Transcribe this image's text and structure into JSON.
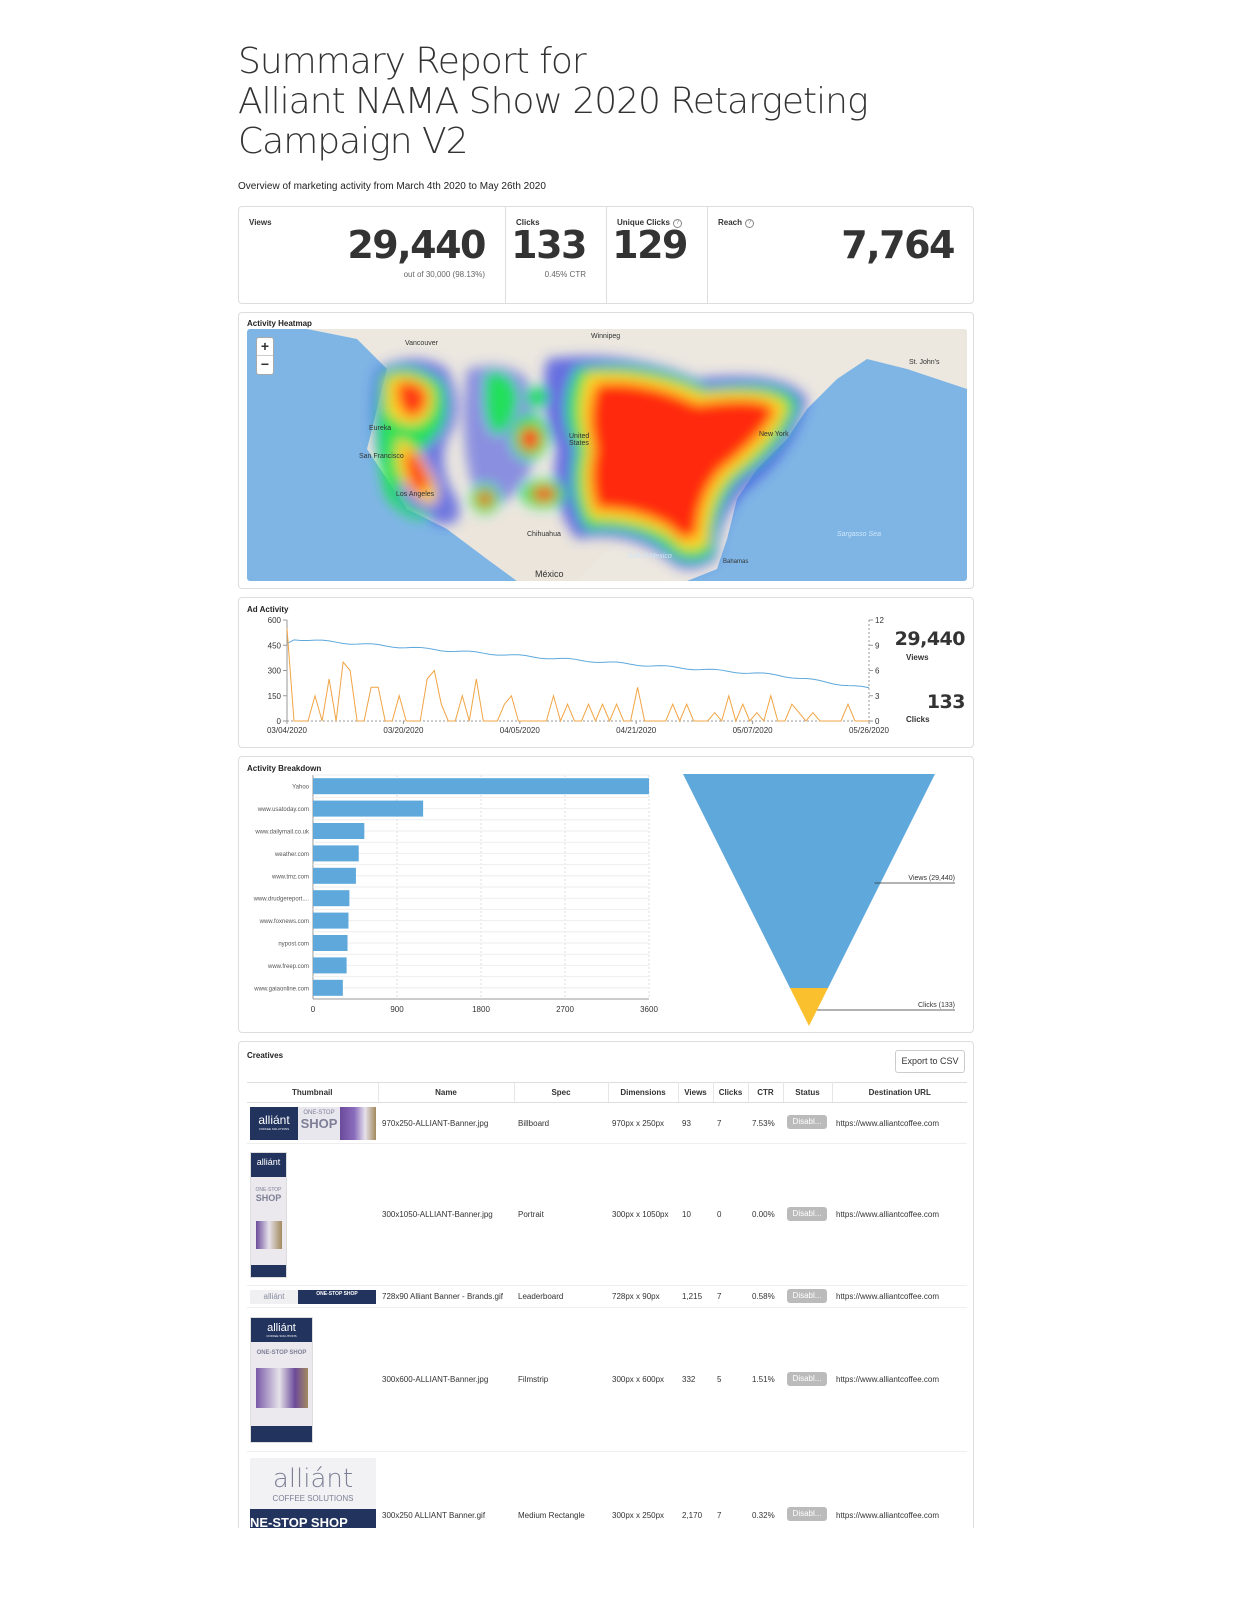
{
  "page": {
    "title_line1": "Summary Report for",
    "title_line2": "Alliant NAMA Show 2020 Retargeting",
    "title_line3": "Campaign V2",
    "subtitle": "Overview of marketing activity from March 4th 2020 to May 26th 2020"
  },
  "stats": {
    "views_label": "Views",
    "views_value": "29,440",
    "views_sub": "out of 30,000 (98.13%)",
    "clicks_label": "Clicks",
    "clicks_value": "133",
    "clicks_sub": "0.45% CTR",
    "unique_label": "Unique Clicks",
    "unique_value": "129",
    "reach_label": "Reach",
    "reach_value": "7,764",
    "help_glyph": "?"
  },
  "heatmap": {
    "title": "Activity Heatmap",
    "zoom_in": "+",
    "zoom_out": "−",
    "labels": [
      "Vancouver",
      "Winnipeg",
      "Eureka",
      "San Francisco",
      "Los Angeles",
      "Chihuahua",
      "México",
      "Gulf of Mexico",
      "Bahamas",
      "New York",
      "St. John's",
      "Sargasso Sea",
      "United States"
    ]
  },
  "ad_activity": {
    "title": "Ad Activity",
    "views_total": "29,440",
    "views_label": "Views",
    "clicks_total": "133",
    "clicks_label": "Clicks",
    "left_ticks": [
      "600",
      "450",
      "300",
      "150",
      "0"
    ],
    "right_ticks": [
      "12",
      "9",
      "6",
      "3",
      "0"
    ],
    "x_ticks": [
      "03/04/2020",
      "03/20/2020",
      "04/05/2020",
      "04/21/2020",
      "05/07/2020",
      "05/26/2020"
    ],
    "colors": {
      "views": "#5ea8dc",
      "clicks": "#f0a444"
    }
  },
  "breakdown": {
    "title": "Activity Breakdown",
    "sites": [
      "Yahoo",
      "www.usatoday.com",
      "www.dailymail.co.uk",
      "weather.com",
      "www.tmz.com",
      "www.drudgereport....",
      "www.foxnews.com",
      "nypost.com",
      "www.freep.com",
      "www.gaiaonline.com"
    ],
    "values": [
      3600,
      1180,
      550,
      490,
      460,
      390,
      380,
      370,
      360,
      320
    ],
    "x_ticks": [
      "0",
      "900",
      "1800",
      "2700",
      "3600"
    ],
    "xmax": 3600,
    "funnel_views_label": "Views (29,440)",
    "funnel_clicks_label": "Clicks (133)",
    "funnel_views": 29440,
    "funnel_clicks": 133,
    "colors": {
      "bar": "#5ea8dc",
      "views": "#5ea8dc",
      "clicks": "#fbc02d"
    }
  },
  "creatives": {
    "title": "Creatives",
    "export_label": "Export to CSV",
    "columns": [
      "Thumbnail",
      "Name",
      "Spec",
      "Dimensions",
      "Views",
      "Clicks",
      "CTR",
      "Status",
      "Destination URL"
    ],
    "rows": [
      {
        "name": "970x250-ALLIANT-Banner.jpg",
        "spec": "Billboard",
        "dims": "970px x 250px",
        "views": "93",
        "clicks": "7",
        "ctr": "7.53%",
        "status": "Disabl...",
        "url": "https://www.alliantcoffee.com"
      },
      {
        "name": "300x1050-ALLIANT-Banner.jpg",
        "spec": "Portrait",
        "dims": "300px x 1050px",
        "views": "10",
        "clicks": "0",
        "ctr": "0.00%",
        "status": "Disabl...",
        "url": "https://www.alliantcoffee.com"
      },
      {
        "name": "728x90 Alliant Banner - Brands.gif",
        "spec": "Leaderboard",
        "dims": "728px x 90px",
        "views": "1,215",
        "clicks": "7",
        "ctr": "0.58%",
        "status": "Disabl...",
        "url": "https://www.alliantcoffee.com"
      },
      {
        "name": "300x600-ALLIANT-Banner.jpg",
        "spec": "Filmstrip",
        "dims": "300px x 600px",
        "views": "332",
        "clicks": "5",
        "ctr": "1.51%",
        "status": "Disabl...",
        "url": "https://www.alliantcoffee.com"
      },
      {
        "name": "300x250 ALLIANT Banner.gif",
        "spec": "Medium Rectangle",
        "dims": "300px x 250px",
        "views": "2,170",
        "clicks": "7",
        "ctr": "0.32%",
        "status": "Disabl...",
        "url": "https://www.alliantcoffee.com"
      }
    ],
    "thumb_text": {
      "brand": "alliánt",
      "brand_sub": "COFFEE SOLUTIONS",
      "one_stop": "ONE-STOP",
      "shop": "SHOP",
      "one_stop_shop": "ONE-STOP SHOP",
      "one_stop_shop_caps": "NE-STOP SHOP"
    }
  }
}
